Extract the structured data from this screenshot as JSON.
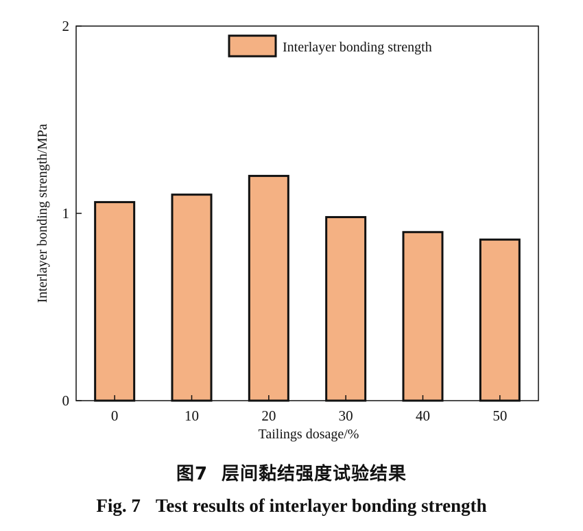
{
  "chart_data": {
    "type": "bar",
    "categories": [
      "0",
      "10",
      "20",
      "30",
      "40",
      "50"
    ],
    "values": [
      1.06,
      1.1,
      1.2,
      0.98,
      0.9,
      0.86
    ],
    "series": [
      {
        "name": "Interlayer bonding strength",
        "values": [
          1.06,
          1.1,
          1.2,
          0.98,
          0.9,
          0.86
        ]
      }
    ],
    "xlabel": "Tailings dosage/%",
    "ylabel": "Interlayer bonding strength/MPa",
    "ylim": [
      0,
      2
    ],
    "yticks": [
      "0",
      "1",
      "2"
    ],
    "legend": "top-right",
    "grid": false,
    "bar_color": "#f4b183",
    "bar_edge_color": "#111111"
  },
  "caption": {
    "cn_number": "图7",
    "cn_text": "层间黏结强度试验结果",
    "en_number": "Fig. 7",
    "en_text": "Test results of interlayer bonding strength"
  }
}
